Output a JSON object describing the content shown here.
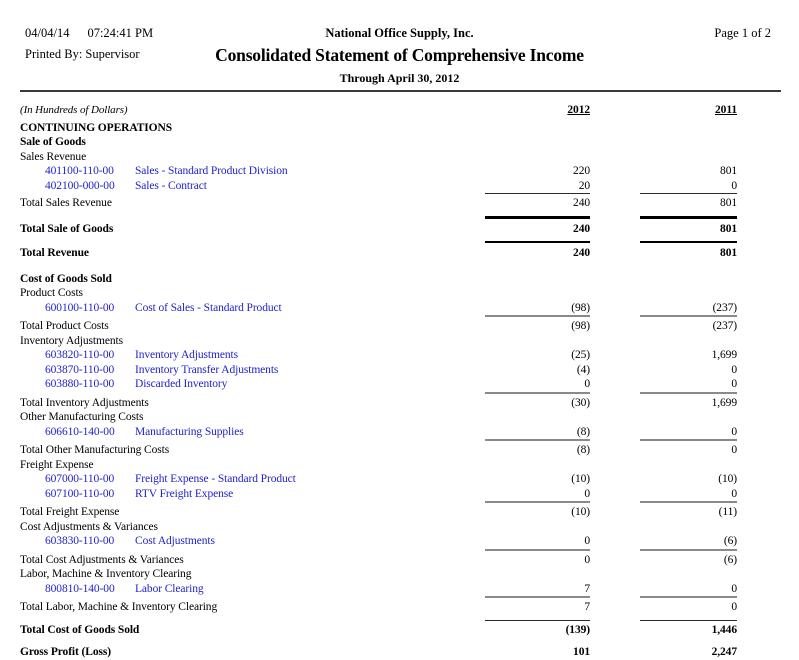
{
  "page": {
    "date": "04/04/14",
    "time": "07:24:41 PM",
    "company": "National Office Supply, Inc.",
    "page_label": "Page 1 of 2",
    "printed_by_label": "Printed By:",
    "printed_by_value": "Supervisor",
    "title": "Consolidated Statement of Comprehensive Income",
    "subtitle": "Through April 30, 2012"
  },
  "colors": {
    "link_blue": "#2222CC",
    "rule_gray": "#8a8a8a",
    "rule_black": "#000000"
  },
  "table": {
    "units_note": "(In Hundreds of Dollars)",
    "col_2012": "2012",
    "col_2011": "2011",
    "rows": [
      {
        "t": "section",
        "label": "CONTINUING OPERATIONS"
      },
      {
        "t": "section",
        "label": "Sale of Goods"
      },
      {
        "t": "group",
        "label": "Sales Revenue"
      },
      {
        "t": "account",
        "acct": "401100-110-00",
        "desc": "Sales - Standard Product Division",
        "v2012": "220",
        "v2011": "801"
      },
      {
        "t": "account",
        "acct": "402100-000-00",
        "desc": "Sales - Contract",
        "v2012": "20",
        "v2011": "0"
      },
      {
        "t": "total",
        "label": "Total Sales Revenue",
        "v2012": "240",
        "v2011": "801",
        "rule": "thin"
      },
      {
        "t": "total2",
        "label": "Total Sale of Goods",
        "v2012": "240",
        "v2011": "801",
        "rule": "thick"
      },
      {
        "t": "total2",
        "label": "Total Revenue",
        "v2012": "240",
        "v2011": "801",
        "rule": "medium"
      },
      {
        "t": "spacer"
      },
      {
        "t": "section",
        "label": "Cost of Goods Sold"
      },
      {
        "t": "group",
        "label": "Product Costs"
      },
      {
        "t": "account",
        "acct": "600100-110-00",
        "desc": "Cost of Sales - Standard Product",
        "v2012": "(98)",
        "v2011": "(237)"
      },
      {
        "t": "total",
        "label": "Total Product Costs",
        "v2012": "(98)",
        "v2011": "(237)",
        "rule": "gray"
      },
      {
        "t": "group",
        "label": "Inventory Adjustments"
      },
      {
        "t": "account",
        "acct": "603820-110-00",
        "desc": "Inventory Adjustments",
        "v2012": "(25)",
        "v2011": "1,699"
      },
      {
        "t": "account",
        "acct": "603870-110-00",
        "desc": "Inventory Transfer Adjustments",
        "v2012": "(4)",
        "v2011": "0"
      },
      {
        "t": "account",
        "acct": "603880-110-00",
        "desc": "Discarded Inventory",
        "v2012": "0",
        "v2011": "0"
      },
      {
        "t": "total",
        "label": "Total Inventory Adjustments",
        "v2012": "(30)",
        "v2011": "1,699",
        "rule": "gray"
      },
      {
        "t": "group",
        "label": "Other Manufacturing Costs"
      },
      {
        "t": "account",
        "acct": "606610-140-00",
        "desc": "Manufacturing Supplies",
        "v2012": "(8)",
        "v2011": "0"
      },
      {
        "t": "total",
        "label": "Total Other Manufacturing Costs",
        "v2012": "(8)",
        "v2011": "0",
        "rule": "gray"
      },
      {
        "t": "group",
        "label": "Freight Expense"
      },
      {
        "t": "account",
        "acct": "607000-110-00",
        "desc": "Freight Expense - Standard Product",
        "v2012": "(10)",
        "v2011": "(10)"
      },
      {
        "t": "account",
        "acct": "607100-110-00",
        "desc": "RTV Freight Expense",
        "v2012": "0",
        "v2011": "0"
      },
      {
        "t": "total",
        "label": "Total Freight Expense",
        "v2012": "(10)",
        "v2011": "(11)",
        "rule": "gray"
      },
      {
        "t": "group",
        "label": "Cost Adjustments & Variances"
      },
      {
        "t": "account",
        "acct": "603830-110-00",
        "desc": "Cost Adjustments",
        "v2012": "0",
        "v2011": "(6)"
      },
      {
        "t": "total",
        "label": "Total Cost Adjustments & Variances",
        "v2012": "0",
        "v2011": "(6)",
        "rule": "gray"
      },
      {
        "t": "group",
        "label": "Labor, Machine & Inventory Clearing"
      },
      {
        "t": "account",
        "acct": "800810-140-00",
        "desc": "Labor Clearing",
        "v2012": "7",
        "v2011": "0"
      },
      {
        "t": "total",
        "label": "Total Labor, Machine & Inventory Clearing",
        "v2012": "7",
        "v2011": "0",
        "rule": "gray"
      },
      {
        "t": "total2",
        "label": "Total Cost of Goods Sold",
        "v2012": "(139)",
        "v2011": "1,446",
        "rule": "thin"
      },
      {
        "t": "grand",
        "label": "Gross Profit (Loss)",
        "v2012": "101",
        "v2011": "2,247"
      }
    ]
  }
}
